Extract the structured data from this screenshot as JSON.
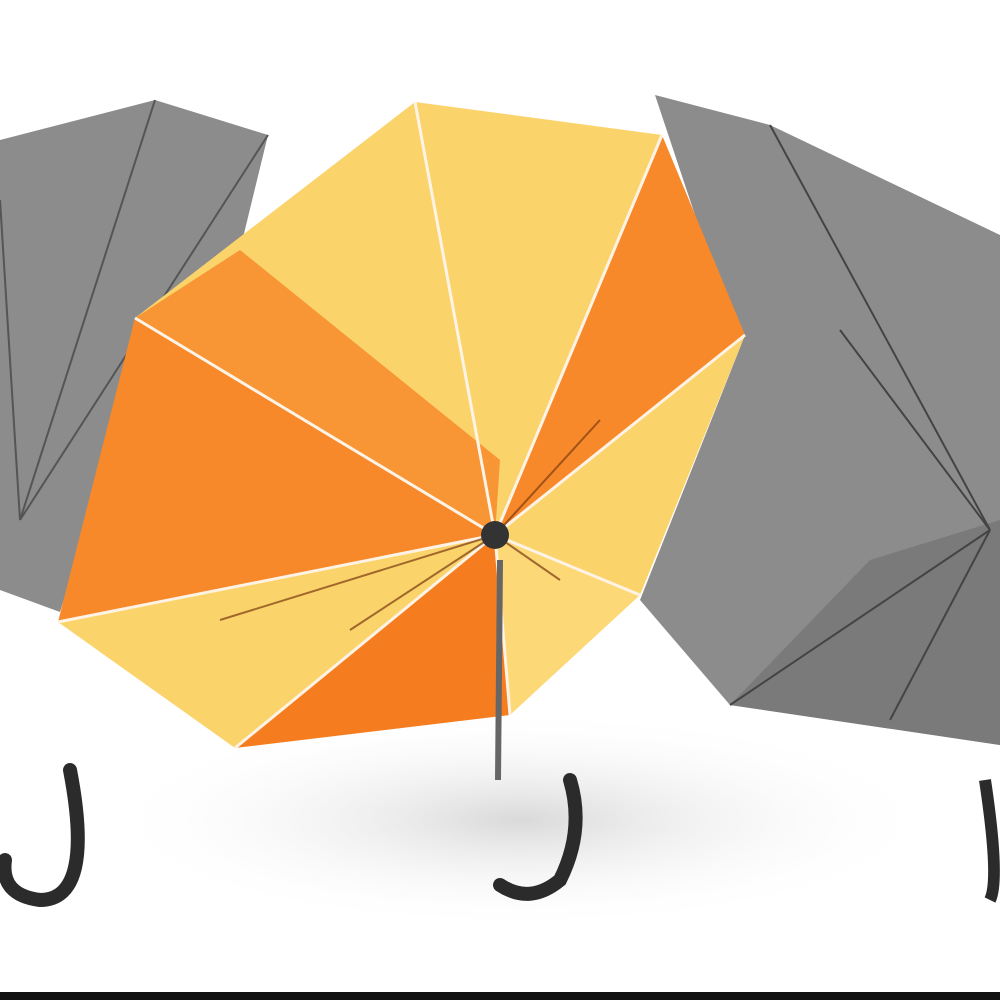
{
  "image": {
    "subject": "umbrellas",
    "colors": {
      "background": "#ffffff",
      "gray_canopy": "#8c8c8c",
      "gray_canopy_dark": "#6f6f6f",
      "orange_panel": "#f7892a",
      "yellow_panel": "#fbd36b",
      "handle": "#2b2b2b",
      "bottom_bar": "#111111"
    }
  }
}
